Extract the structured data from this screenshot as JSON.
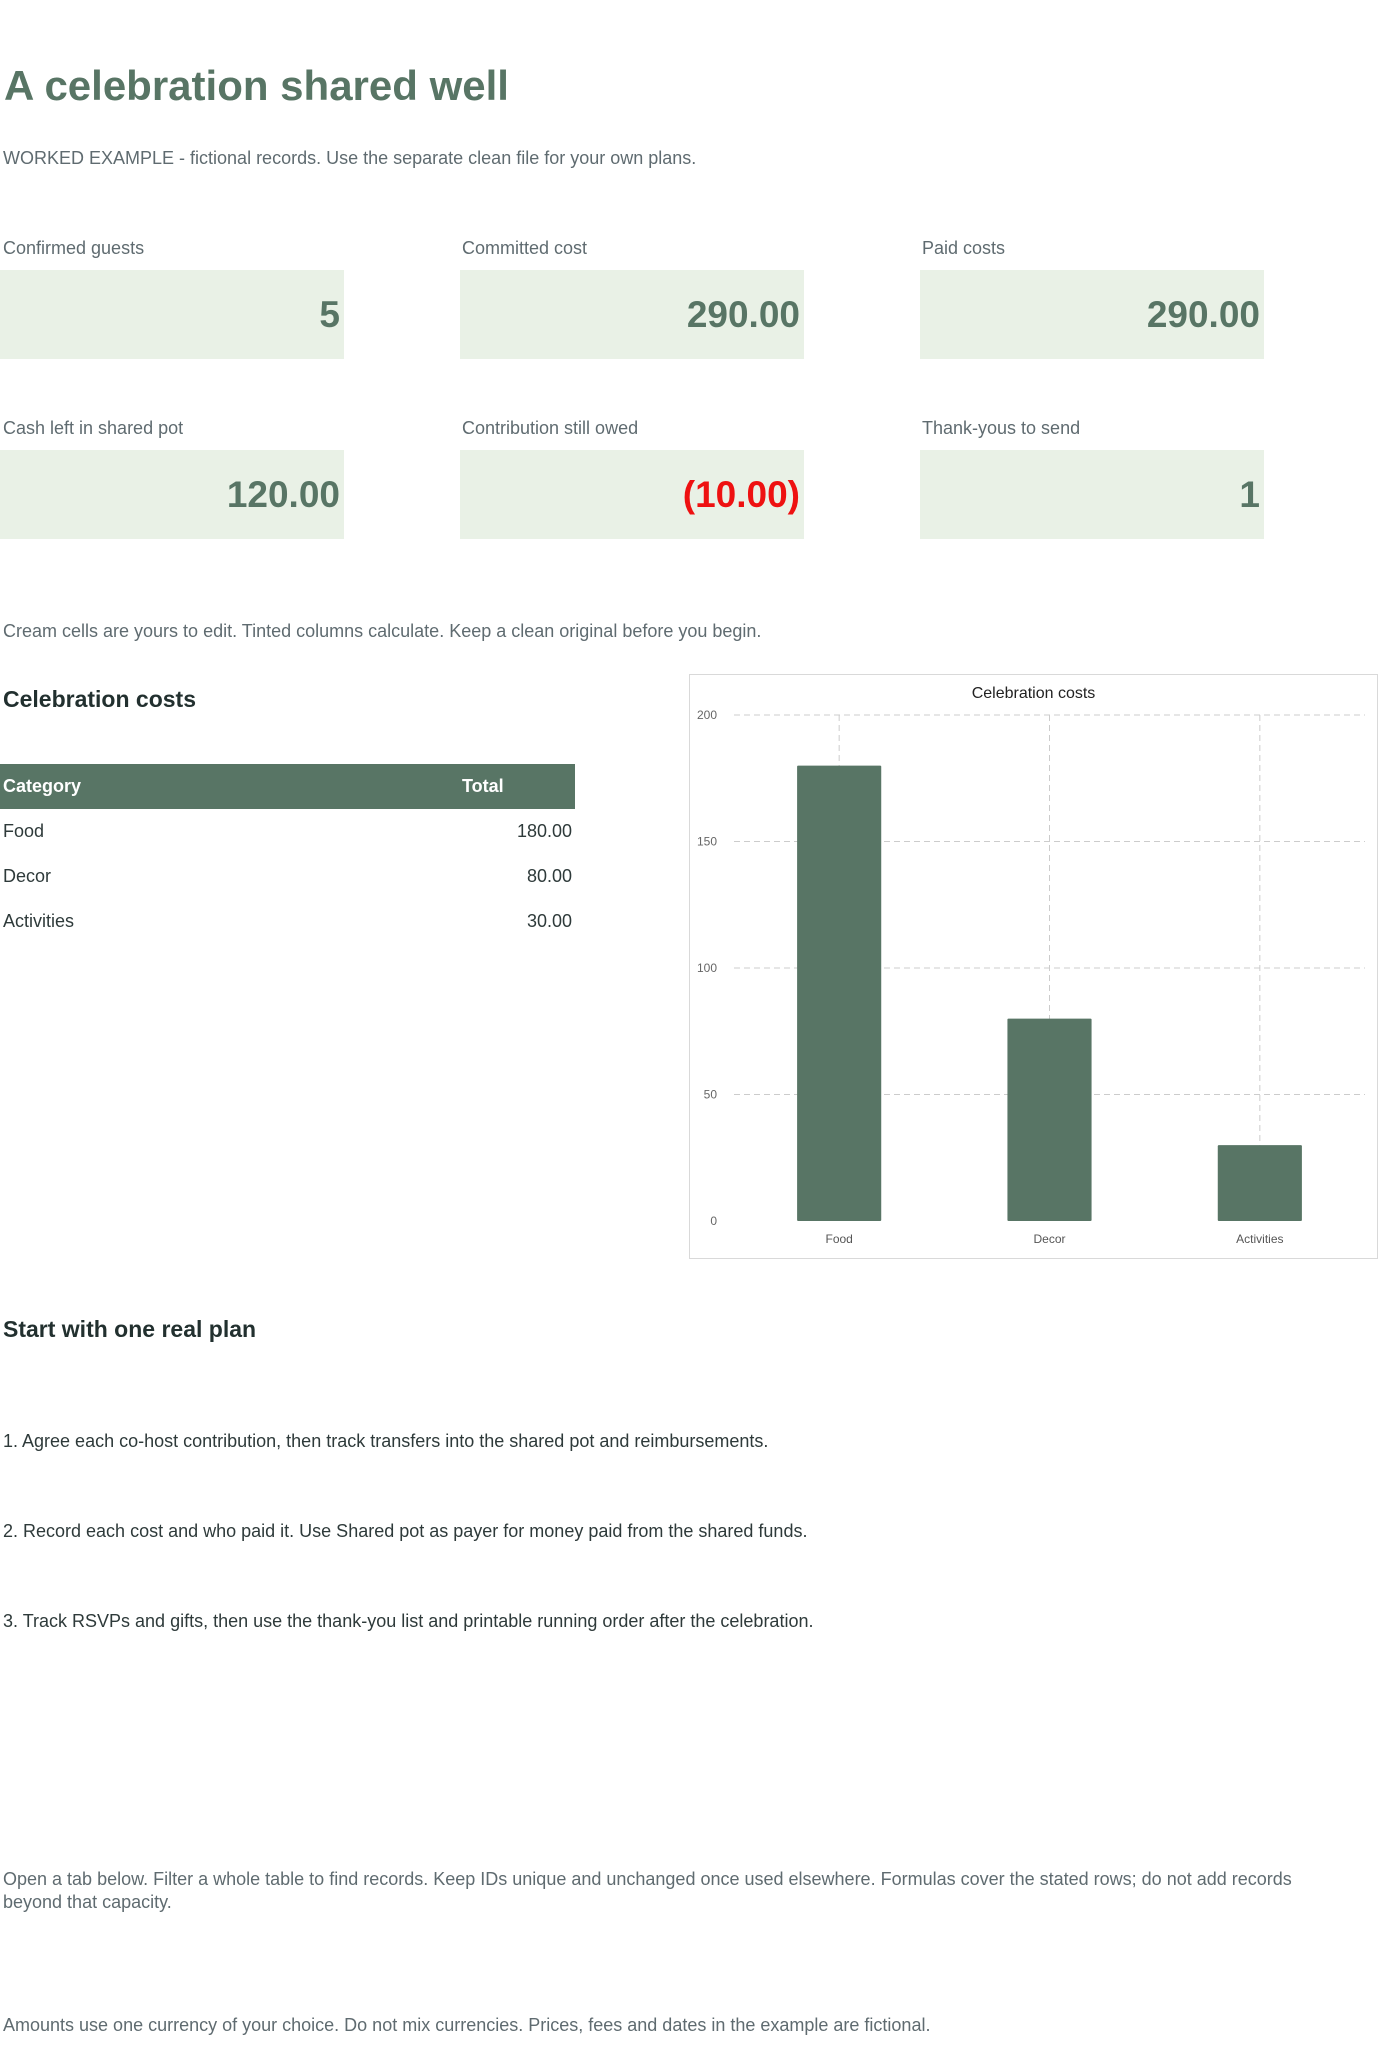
{
  "header": {
    "title": "A celebration shared well",
    "subtitle": "WORKED EXAMPLE - fictional records. Use the separate clean file for your own plans."
  },
  "kpis": {
    "confirmed_guests": {
      "label": "Confirmed guests",
      "value": "5"
    },
    "committed_cost": {
      "label": "Committed cost",
      "value": "290.00"
    },
    "paid_costs": {
      "label": "Paid costs",
      "value": "290.00"
    },
    "cash_left": {
      "label": "Cash left in shared pot",
      "value": "120.00"
    },
    "contribution_owed": {
      "label": "Contribution still owed",
      "value": "(10.00)"
    },
    "thank_yous": {
      "label": "Thank-yous to send",
      "value": "1"
    }
  },
  "colors": {
    "accent": "#587565",
    "kpi_background": "#e9f1e6",
    "negative": "#ee1111",
    "muted_text": "#5f6b70"
  },
  "notes": {
    "edit_hint": "Cream cells are yours to edit. Tinted columns calculate. Keep a clean original before you begin.",
    "tabs_hint": "Open a tab below. Filter a whole table to find records. Keep IDs unique and unchanged once used elsewhere. Formulas cover the stated rows; do not add records beyond that capacity.",
    "currency_hint": "Amounts use one currency of your choice. Do not mix currencies. Prices, fees and dates in the example are fictional."
  },
  "costs_section": {
    "heading": "Celebration costs",
    "columns": [
      "Category",
      "Total"
    ],
    "rows": [
      {
        "category": "Food",
        "total": "180.00"
      },
      {
        "category": "Decor",
        "total": "80.00"
      },
      {
        "category": "Activities",
        "total": "30.00"
      }
    ]
  },
  "chart_data": {
    "type": "bar",
    "title": "Celebration costs",
    "categories": [
      "Food",
      "Decor",
      "Activities"
    ],
    "values": [
      180,
      80,
      30
    ],
    "ylim": [
      0,
      200
    ],
    "yticks": [
      0,
      50,
      100,
      150,
      200
    ],
    "xlabel": "",
    "ylabel": "",
    "grid": true,
    "legend": "none",
    "bar_color": "#587565"
  },
  "start_section": {
    "heading": "Start with one real plan",
    "steps": [
      "1. Agree each co-host contribution, then track transfers into the shared pot and reimbursements.",
      "2. Record each cost and who paid it. Use Shared pot as payer for money paid from the shared funds.",
      "3. Track RSVPs and gifts, then use the thank-you list and printable running order after the celebration."
    ]
  }
}
